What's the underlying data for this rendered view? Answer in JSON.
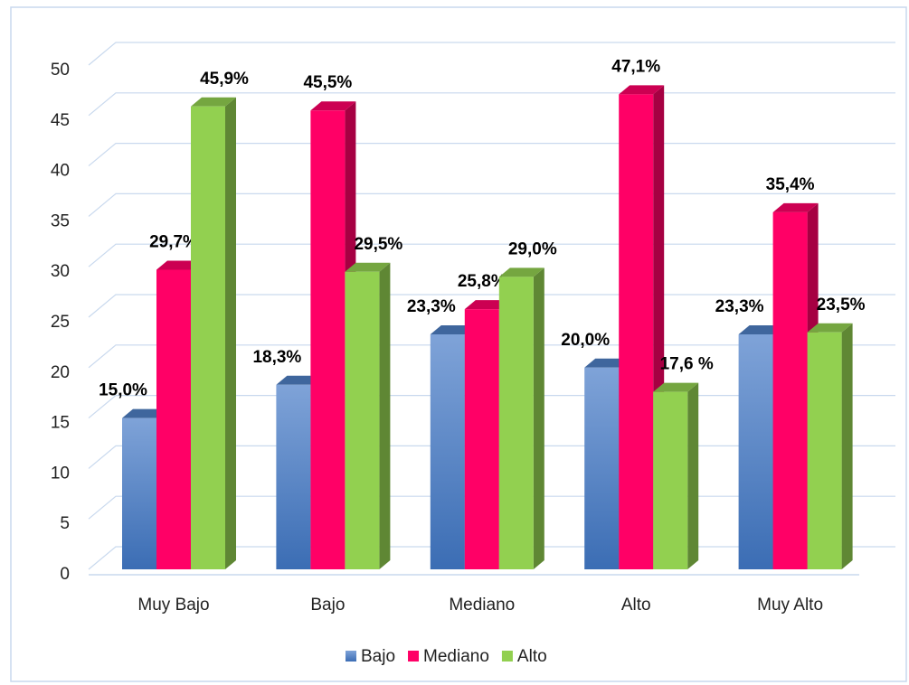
{
  "chart_data": {
    "type": "bar3d",
    "categories": [
      "Muy Bajo",
      "Bajo",
      "Mediano",
      "Alto",
      "Muy Alto"
    ],
    "series": [
      {
        "name": "Bajo",
        "color": "#4f7fc4",
        "values": [
          15.0,
          18.3,
          23.3,
          20.0,
          23.3
        ],
        "value_labels": [
          "15,0%",
          "18,3%",
          "23,3%",
          "20,0%",
          "23,3%"
        ]
      },
      {
        "name": "Mediano",
        "color": "#ff0066",
        "values": [
          29.7,
          45.5,
          25.8,
          47.1,
          35.4
        ],
        "value_labels": [
          "29,7%",
          "45,5%",
          "25,8%",
          "47,1%",
          "35,4%"
        ]
      },
      {
        "name": "Alto",
        "color": "#92d050",
        "values": [
          45.9,
          29.5,
          29.0,
          17.6,
          23.5
        ],
        "value_labels": [
          "45,9%",
          "29,5%",
          "29,0%",
          "17,6 %",
          "23,5%"
        ]
      }
    ],
    "ylim": [
      0,
      50
    ],
    "yticks": [
      0,
      5,
      10,
      15,
      20,
      25,
      30,
      35,
      40,
      45,
      50
    ],
    "grid": true,
    "legend": "bottom"
  }
}
